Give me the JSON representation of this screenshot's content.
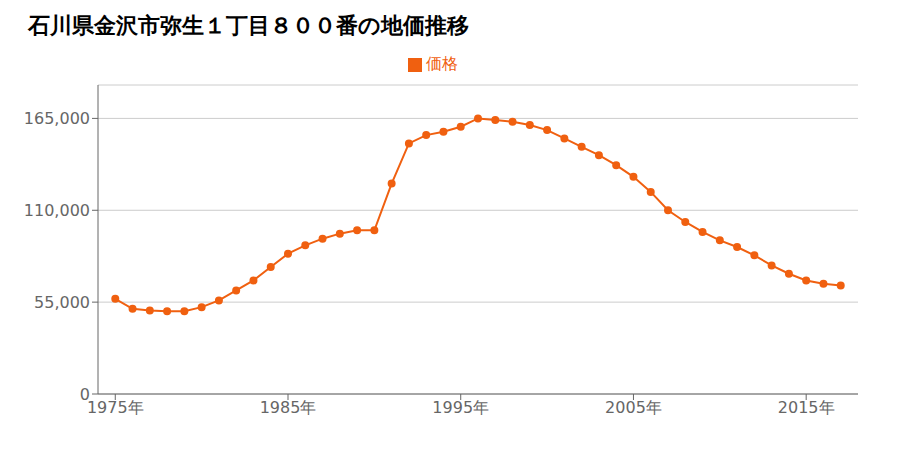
{
  "chart_data": {
    "type": "line",
    "title": "石川県金沢市弥生１丁目８００番の地価推移",
    "x": [
      1975,
      1976,
      1977,
      1978,
      1979,
      1980,
      1981,
      1982,
      1983,
      1984,
      1985,
      1986,
      1987,
      1988,
      1989,
      1990,
      1991,
      1992,
      1993,
      1994,
      1995,
      1996,
      1997,
      1998,
      1999,
      2000,
      2001,
      2002,
      2003,
      2004,
      2005,
      2006,
      2007,
      2008,
      2009,
      2010,
      2011,
      2012,
      2013,
      2014,
      2015,
      2016,
      2017
    ],
    "series": [
      {
        "name": "価格",
        "color": "#f06010",
        "marker": "circle",
        "values": [
          57000,
          51000,
          50000,
          49500,
          49500,
          52000,
          56000,
          62000,
          68000,
          76000,
          84000,
          89000,
          93000,
          96000,
          98000,
          98000,
          126000,
          150000,
          155000,
          157000,
          160000,
          165000,
          164000,
          163000,
          161000,
          158000,
          153000,
          148000,
          143000,
          137000,
          130000,
          121000,
          110000,
          103000,
          97000,
          92000,
          88000,
          83000,
          77000,
          72000,
          68000,
          66000,
          65000
        ]
      }
    ],
    "xlim": [
      1974,
      2018
    ],
    "xticks": [
      {
        "value": 1975,
        "label": "1975年"
      },
      {
        "value": 1985,
        "label": "1985年"
      },
      {
        "value": 1995,
        "label": "1995年"
      },
      {
        "value": 2005,
        "label": "2005年"
      },
      {
        "value": 2015,
        "label": "2015年"
      }
    ],
    "ylim": [
      0,
      185000
    ],
    "yticks": [
      0,
      {
        "value": 55000,
        "label": "55,000"
      },
      {
        "value": 110000,
        "label": "110,000"
      },
      {
        "value": 165000,
        "label": "165,000"
      }
    ],
    "grid": true,
    "legend": "top"
  }
}
